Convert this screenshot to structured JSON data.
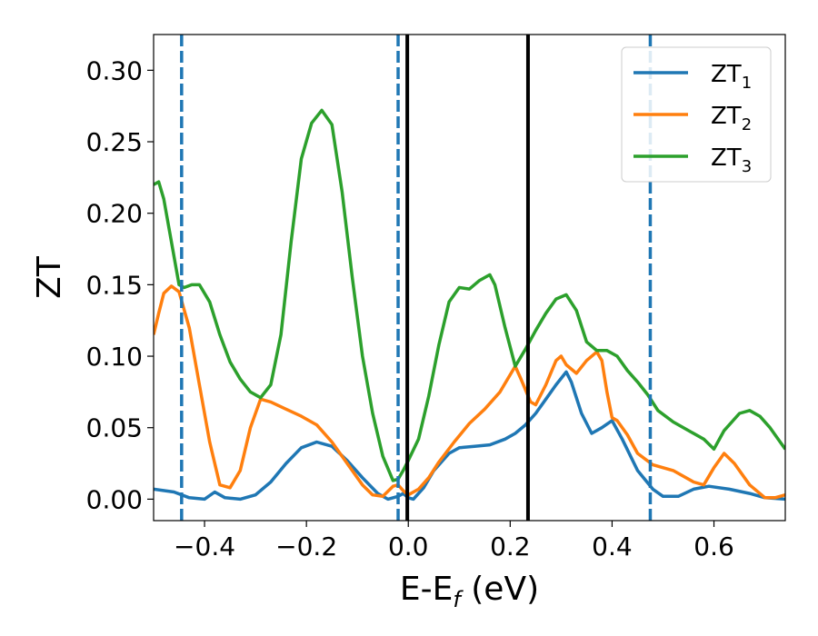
{
  "chart_data": {
    "type": "line",
    "xlabel": "E-E",
    "xlabel_sub": "f",
    "xlabel_unit": " (eV)",
    "ylabel": "ZT",
    "xlim": [
      -0.5,
      0.74
    ],
    "ylim": [
      -0.015,
      0.325
    ],
    "x_ticks": [
      -0.4,
      -0.2,
      0.0,
      0.2,
      0.4,
      0.6
    ],
    "x_tick_labels": [
      "−0.4",
      "−0.2",
      "0.0",
      "0.2",
      "0.4",
      "0.6"
    ],
    "y_ticks": [
      0.0,
      0.05,
      0.1,
      0.15,
      0.2,
      0.25,
      0.3
    ],
    "y_tick_labels": [
      "0.00",
      "0.05",
      "0.10",
      "0.15",
      "0.20",
      "0.25",
      "0.30"
    ],
    "grid": false,
    "legend_position": "top-right",
    "series": [
      {
        "name": "ZT",
        "name_sub": "1",
        "color": "#1f77b4",
        "points": [
          [
            -0.5,
            0.007
          ],
          [
            -0.46,
            0.005
          ],
          [
            -0.43,
            0.001
          ],
          [
            -0.4,
            0.0
          ],
          [
            -0.38,
            0.005
          ],
          [
            -0.36,
            0.001
          ],
          [
            -0.33,
            0.0
          ],
          [
            -0.3,
            0.003
          ],
          [
            -0.27,
            0.012
          ],
          [
            -0.24,
            0.025
          ],
          [
            -0.21,
            0.036
          ],
          [
            -0.18,
            0.04
          ],
          [
            -0.15,
            0.037
          ],
          [
            -0.12,
            0.027
          ],
          [
            -0.09,
            0.015
          ],
          [
            -0.06,
            0.004
          ],
          [
            -0.04,
            0.0
          ],
          [
            -0.02,
            0.002
          ],
          [
            -0.01,
            0.004
          ],
          [
            0.0,
            0.001
          ],
          [
            0.01,
            0.0
          ],
          [
            0.03,
            0.008
          ],
          [
            0.05,
            0.02
          ],
          [
            0.08,
            0.032
          ],
          [
            0.1,
            0.036
          ],
          [
            0.13,
            0.037
          ],
          [
            0.16,
            0.038
          ],
          [
            0.19,
            0.042
          ],
          [
            0.21,
            0.046
          ],
          [
            0.23,
            0.052
          ],
          [
            0.25,
            0.06
          ],
          [
            0.27,
            0.07
          ],
          [
            0.29,
            0.08
          ],
          [
            0.31,
            0.089
          ],
          [
            0.32,
            0.082
          ],
          [
            0.34,
            0.06
          ],
          [
            0.36,
            0.046
          ],
          [
            0.38,
            0.05
          ],
          [
            0.4,
            0.055
          ],
          [
            0.42,
            0.042
          ],
          [
            0.45,
            0.02
          ],
          [
            0.48,
            0.007
          ],
          [
            0.5,
            0.002
          ],
          [
            0.53,
            0.002
          ],
          [
            0.56,
            0.007
          ],
          [
            0.59,
            0.009
          ],
          [
            0.63,
            0.007
          ],
          [
            0.67,
            0.004
          ],
          [
            0.7,
            0.001
          ],
          [
            0.74,
            0.0
          ]
        ]
      },
      {
        "name": "ZT",
        "name_sub": "2",
        "color": "#ff7f0e",
        "points": [
          [
            -0.5,
            0.115
          ],
          [
            -0.49,
            0.13
          ],
          [
            -0.48,
            0.144
          ],
          [
            -0.465,
            0.149
          ],
          [
            -0.45,
            0.145
          ],
          [
            -0.43,
            0.12
          ],
          [
            -0.41,
            0.08
          ],
          [
            -0.39,
            0.04
          ],
          [
            -0.37,
            0.01
          ],
          [
            -0.35,
            0.008
          ],
          [
            -0.33,
            0.02
          ],
          [
            -0.31,
            0.05
          ],
          [
            -0.29,
            0.07
          ],
          [
            -0.27,
            0.068
          ],
          [
            -0.24,
            0.063
          ],
          [
            -0.21,
            0.058
          ],
          [
            -0.18,
            0.052
          ],
          [
            -0.15,
            0.04
          ],
          [
            -0.12,
            0.025
          ],
          [
            -0.09,
            0.01
          ],
          [
            -0.07,
            0.003
          ],
          [
            -0.05,
            0.002
          ],
          [
            -0.03,
            0.009
          ],
          [
            -0.02,
            0.01
          ],
          [
            -0.01,
            0.006
          ],
          [
            0.0,
            0.003
          ],
          [
            0.02,
            0.007
          ],
          [
            0.04,
            0.015
          ],
          [
            0.06,
            0.026
          ],
          [
            0.09,
            0.04
          ],
          [
            0.12,
            0.053
          ],
          [
            0.15,
            0.063
          ],
          [
            0.18,
            0.075
          ],
          [
            0.2,
            0.087
          ],
          [
            0.21,
            0.093
          ],
          [
            0.22,
            0.085
          ],
          [
            0.24,
            0.068
          ],
          [
            0.25,
            0.066
          ],
          [
            0.27,
            0.08
          ],
          [
            0.29,
            0.097
          ],
          [
            0.3,
            0.1
          ],
          [
            0.31,
            0.094
          ],
          [
            0.33,
            0.088
          ],
          [
            0.35,
            0.097
          ],
          [
            0.37,
            0.103
          ],
          [
            0.38,
            0.097
          ],
          [
            0.39,
            0.075
          ],
          [
            0.4,
            0.057
          ],
          [
            0.41,
            0.055
          ],
          [
            0.43,
            0.045
          ],
          [
            0.45,
            0.032
          ],
          [
            0.48,
            0.024
          ],
          [
            0.52,
            0.02
          ],
          [
            0.56,
            0.012
          ],
          [
            0.58,
            0.01
          ],
          [
            0.6,
            0.022
          ],
          [
            0.62,
            0.032
          ],
          [
            0.64,
            0.025
          ],
          [
            0.67,
            0.01
          ],
          [
            0.7,
            0.001
          ],
          [
            0.72,
            0.001
          ],
          [
            0.74,
            0.003
          ]
        ]
      },
      {
        "name": "ZT",
        "name_sub": "3",
        "color": "#2ca02c",
        "points": [
          [
            -0.5,
            0.22
          ],
          [
            -0.49,
            0.222
          ],
          [
            -0.48,
            0.21
          ],
          [
            -0.465,
            0.18
          ],
          [
            -0.45,
            0.15
          ],
          [
            -0.44,
            0.148
          ],
          [
            -0.425,
            0.15
          ],
          [
            -0.41,
            0.15
          ],
          [
            -0.39,
            0.138
          ],
          [
            -0.37,
            0.115
          ],
          [
            -0.35,
            0.096
          ],
          [
            -0.33,
            0.084
          ],
          [
            -0.31,
            0.075
          ],
          [
            -0.29,
            0.071
          ],
          [
            -0.27,
            0.08
          ],
          [
            -0.25,
            0.115
          ],
          [
            -0.23,
            0.18
          ],
          [
            -0.21,
            0.238
          ],
          [
            -0.19,
            0.263
          ],
          [
            -0.17,
            0.272
          ],
          [
            -0.15,
            0.262
          ],
          [
            -0.13,
            0.215
          ],
          [
            -0.11,
            0.155
          ],
          [
            -0.09,
            0.1
          ],
          [
            -0.07,
            0.06
          ],
          [
            -0.05,
            0.03
          ],
          [
            -0.03,
            0.013
          ],
          [
            -0.02,
            0.014
          ],
          [
            -0.01,
            0.02
          ],
          [
            0.0,
            0.027
          ],
          [
            0.02,
            0.042
          ],
          [
            0.04,
            0.072
          ],
          [
            0.06,
            0.108
          ],
          [
            0.08,
            0.138
          ],
          [
            0.1,
            0.148
          ],
          [
            0.12,
            0.147
          ],
          [
            0.14,
            0.153
          ],
          [
            0.16,
            0.157
          ],
          [
            0.17,
            0.15
          ],
          [
            0.19,
            0.12
          ],
          [
            0.21,
            0.093
          ],
          [
            0.23,
            0.105
          ],
          [
            0.25,
            0.118
          ],
          [
            0.27,
            0.13
          ],
          [
            0.29,
            0.14
          ],
          [
            0.31,
            0.143
          ],
          [
            0.33,
            0.132
          ],
          [
            0.35,
            0.11
          ],
          [
            0.37,
            0.104
          ],
          [
            0.39,
            0.104
          ],
          [
            0.41,
            0.1
          ],
          [
            0.43,
            0.09
          ],
          [
            0.45,
            0.082
          ],
          [
            0.47,
            0.073
          ],
          [
            0.49,
            0.062
          ],
          [
            0.52,
            0.054
          ],
          [
            0.55,
            0.048
          ],
          [
            0.58,
            0.042
          ],
          [
            0.6,
            0.035
          ],
          [
            0.62,
            0.048
          ],
          [
            0.65,
            0.06
          ],
          [
            0.67,
            0.062
          ],
          [
            0.69,
            0.058
          ],
          [
            0.71,
            0.05
          ],
          [
            0.73,
            0.04
          ],
          [
            0.74,
            0.035
          ]
        ]
      }
    ],
    "vertical_lines": [
      {
        "x": -0.445,
        "color": "#1f77b4",
        "style": "dashed"
      },
      {
        "x": -0.02,
        "color": "#1f77b4",
        "style": "dashed"
      },
      {
        "x": 0.475,
        "color": "#1f77b4",
        "style": "dashed"
      },
      {
        "x": -0.002,
        "color": "#000000",
        "style": "solid"
      },
      {
        "x": 0.235,
        "color": "#000000",
        "style": "solid"
      }
    ]
  }
}
